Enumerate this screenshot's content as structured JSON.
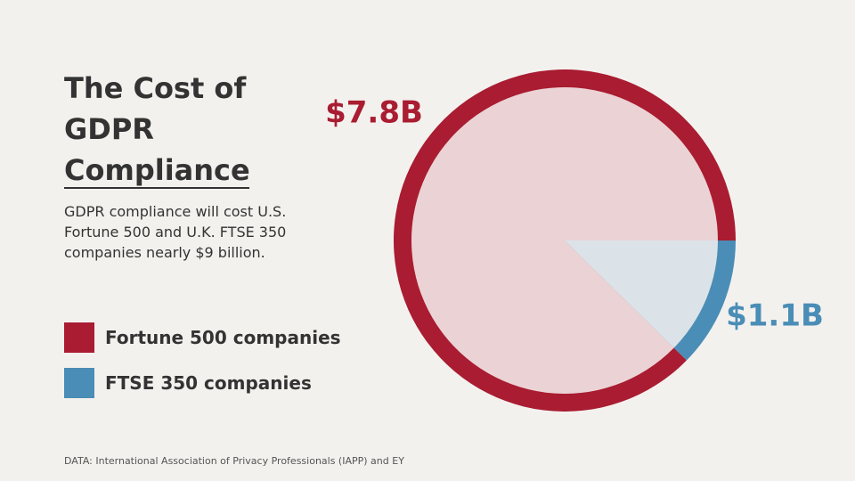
{
  "chart_data": {
    "type": "pie",
    "title": "The Cost of GDPR Compliance",
    "subtitle": "GDPR compliance will cost U.S. Fortune 500 and U.K. FTSE 350 companies nearly $9 billion.",
    "source": "DATA: International Association of Privacy Professionals (IAPP) and EY",
    "categories": [
      "Fortune 500 companies",
      "FTSE 350 companies"
    ],
    "values": [
      7.8,
      1.1
    ],
    "value_labels": [
      "$7.8B",
      "$1.1B"
    ],
    "colors": [
      "#a91c31",
      "#4a8db6"
    ],
    "light_colors": [
      "#ebd3d5",
      "#dbe3e8"
    ]
  }
}
